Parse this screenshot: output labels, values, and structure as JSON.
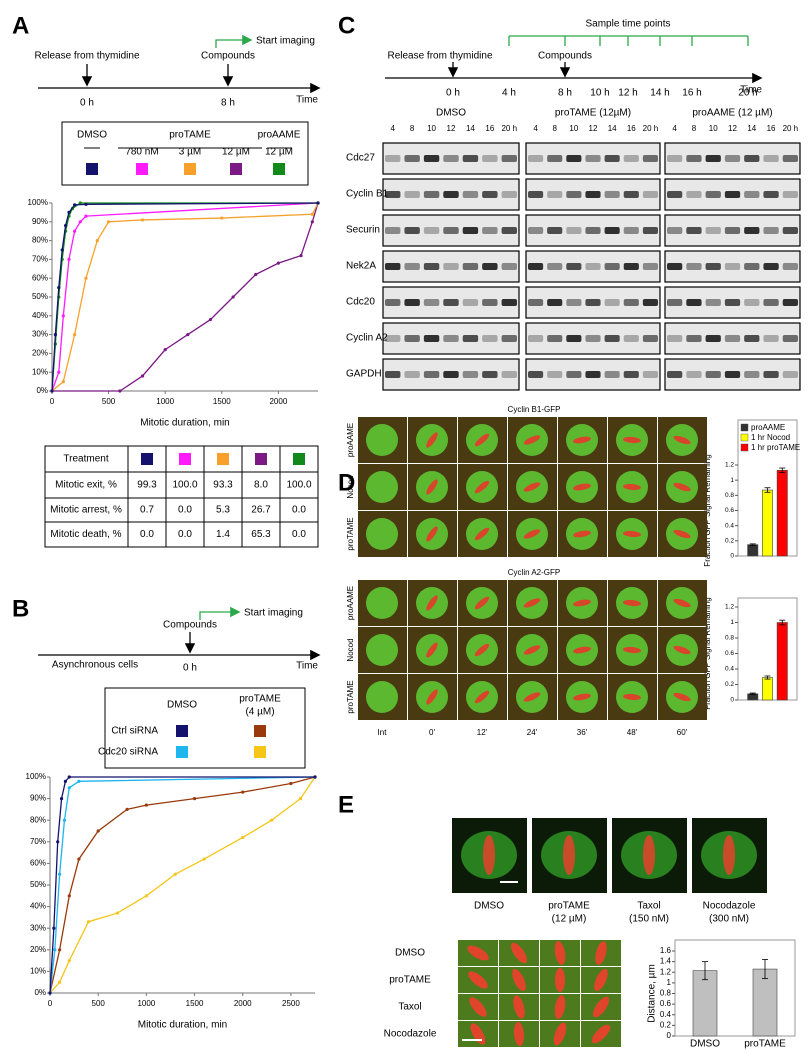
{
  "panel_labels": [
    "A",
    "B",
    "C",
    "D",
    "E"
  ],
  "panel_a": {
    "timeline": {
      "release": "Release from thymidine",
      "t0": "0 h",
      "compounds": "Compounds",
      "t8": "8 h",
      "start": "Start imaging",
      "axis": "Time"
    },
    "legend": {
      "dmso": "DMSO",
      "protame": "proTAME",
      "proaame": "proAAME",
      "items": [
        {
          "color": "#13136e"
        },
        {
          "label": "780 nM",
          "color": "#ff1aff"
        },
        {
          "label": "3 µM",
          "color": "#f7a12a"
        },
        {
          "label": "12 µM",
          "color": "#7b1a85"
        },
        {
          "label": "12 µM",
          "color": "#128a1a"
        }
      ]
    },
    "table": {
      "header": "Treatment",
      "rows": [
        {
          "label": "Mitotic exit, %",
          "cells": [
            "99.3",
            "100.0",
            "93.3",
            "8.0",
            "100.0"
          ]
        },
        {
          "label": "Mitotic arrest, %",
          "cells": [
            "0.7",
            "0.0",
            "5.3",
            "26.7",
            "0.0"
          ]
        },
        {
          "label": "Mitotic death, %",
          "cells": [
            "0.0",
            "0.0",
            "1.4",
            "65.3",
            "0.0"
          ]
        }
      ]
    }
  },
  "panel_b": {
    "timeline": {
      "compounds": "Compounds",
      "t0": "0 h",
      "start": "Start imaging",
      "cells": "Asynchronous cells",
      "axis": "Time"
    },
    "legend": {
      "col1": "DMSO",
      "col2": [
        "proTAME",
        "(4 µM)"
      ],
      "rows": [
        {
          "label": "Ctrl siRNA",
          "colors": [
            "#13136e",
            "#9a3a0c"
          ]
        },
        {
          "label": "Cdc20 siRNA",
          "colors": [
            "#1fb5ef",
            "#f5c518"
          ]
        }
      ]
    }
  },
  "panel_c": {
    "points": "Sample time points",
    "release": "Release from thymidine",
    "compounds": "Compounds",
    "times": [
      "0 h",
      "4 h",
      "8 h",
      "10 h",
      "12 h",
      "14 h",
      "16 h",
      "20 h"
    ],
    "axis": "Time",
    "groups": [
      "DMSO",
      "proTAME (12µM)",
      "proAAME (12 µM)"
    ],
    "lanes": [
      "4",
      "8",
      "10",
      "12",
      "14",
      "16",
      "20 h"
    ],
    "rows": [
      "Cdc27",
      "Cyclin B1",
      "Securin",
      "Nek2A",
      "Cdc20",
      "Cyclin A2",
      "GAPDH"
    ]
  },
  "panel_d": {
    "titles": [
      "Cyclin B1-GFP",
      "Cyclin A2-GFP"
    ],
    "rows": [
      "proAAME",
      "Nocod",
      "proTAME"
    ],
    "columns": [
      "Int",
      "0'",
      "12'",
      "24'",
      "36'",
      "48'",
      "60'"
    ]
  },
  "panel_e": {
    "images": [
      [
        "DMSO"
      ],
      [
        "proTAME",
        "(12 µM)"
      ],
      [
        "Taxol",
        "(150 nM)"
      ],
      [
        "Nocodazole",
        "(300 nM)"
      ]
    ],
    "rows": [
      "DMSO",
      "proTAME",
      "Taxol",
      "Nocodazole"
    ]
  },
  "chart_data": [
    {
      "type": "line",
      "xlabel": "Mitotic duration, min",
      "xlim": [
        0,
        2350
      ],
      "xticks": [
        0,
        500,
        1000,
        1500,
        2000
      ],
      "ylim": [
        0,
        100
      ],
      "yticks": [
        {
          "value": 0,
          "label": "0%"
        },
        {
          "value": 10,
          "label": "10%"
        },
        {
          "value": 20,
          "label": "20%"
        },
        {
          "value": 30,
          "label": "30%"
        },
        {
          "value": 40,
          "label": "40%"
        },
        {
          "value": 50,
          "label": "50%"
        },
        {
          "value": 60,
          "label": "60%"
        },
        {
          "value": 70,
          "label": "70%"
        },
        {
          "value": 80,
          "label": "80%"
        },
        {
          "value": 90,
          "label": "90%"
        },
        {
          "value": 100,
          "label": "100%"
        }
      ],
      "series": [
        {
          "color": "#7b1a85",
          "x": [
            0,
            600,
            800,
            1000,
            1200,
            1400,
            1600,
            1800,
            2000,
            2200,
            2300,
            2350
          ],
          "values": [
            0,
            0,
            8,
            22,
            30,
            38,
            50,
            62,
            68,
            72,
            90,
            100
          ]
        },
        {
          "color": "#f7a12a",
          "x": [
            0,
            100,
            200,
            300,
            400,
            500,
            800,
            1500,
            2300,
            2350
          ],
          "values": [
            0,
            5,
            30,
            60,
            80,
            90,
            91,
            92,
            94,
            100
          ]
        },
        {
          "color": "#ff1aff",
          "x": [
            0,
            60,
            100,
            150,
            200,
            250,
            300,
            2350
          ],
          "values": [
            0,
            10,
            40,
            70,
            85,
            90,
            93,
            100
          ]
        },
        {
          "color": "#128a1a",
          "x": [
            0,
            30,
            60,
            90,
            120,
            150,
            180,
            250,
            2350
          ],
          "values": [
            0,
            25,
            50,
            70,
            85,
            93,
            97,
            100,
            100
          ]
        },
        {
          "color": "#13136e",
          "x": [
            0,
            30,
            60,
            90,
            120,
            150,
            200,
            300,
            2350
          ],
          "values": [
            0,
            30,
            55,
            75,
            88,
            95,
            99,
            99.3,
            100
          ]
        }
      ]
    },
    {
      "type": "line",
      "xlabel": "Mitotic duration, min",
      "xlim": [
        0,
        2750
      ],
      "xticks": [
        0,
        500,
        1000,
        1500,
        2000,
        2500
      ],
      "ylim": [
        0,
        100
      ],
      "yticks": [
        {
          "value": 0,
          "label": "0%"
        },
        {
          "value": 10,
          "label": "10%"
        },
        {
          "value": 20,
          "label": "20%"
        },
        {
          "value": 30,
          "label": "30%"
        },
        {
          "value": 40,
          "label": "40%"
        },
        {
          "value": 50,
          "label": "50%"
        },
        {
          "value": 60,
          "label": "60%"
        },
        {
          "value": 70,
          "label": "70%"
        },
        {
          "value": 80,
          "label": "80%"
        },
        {
          "value": 90,
          "label": "90%"
        },
        {
          "value": 100,
          "label": "100%"
        }
      ],
      "series": [
        {
          "color": "#f5c518",
          "x": [
            0,
            100,
            200,
            400,
            700,
            1000,
            1300,
            1600,
            2000,
            2300,
            2600,
            2750
          ],
          "values": [
            0,
            5,
            15,
            33,
            37,
            45,
            55,
            62,
            72,
            80,
            90,
            100
          ]
        },
        {
          "color": "#9a3a0c",
          "x": [
            0,
            100,
            200,
            300,
            500,
            800,
            1000,
            1500,
            2000,
            2500,
            2750
          ],
          "values": [
            0,
            20,
            45,
            62,
            75,
            85,
            87,
            90,
            93,
            97,
            100
          ]
        },
        {
          "color": "#1fb5ef",
          "x": [
            0,
            50,
            100,
            150,
            200,
            300,
            2750
          ],
          "values": [
            0,
            20,
            55,
            80,
            95,
            98,
            100
          ]
        },
        {
          "color": "#13136e",
          "x": [
            0,
            40,
            80,
            120,
            160,
            200,
            2750
          ],
          "values": [
            0,
            30,
            70,
            90,
            98,
            100,
            100
          ]
        }
      ]
    },
    {
      "type": "bar",
      "ylabel": "Fraction GFP Signal Remaining",
      "ylim": [
        0,
        1.2
      ],
      "yticks": [
        0,
        0.2,
        0.4,
        0.6,
        0.8,
        1,
        1.2
      ],
      "legend": "top",
      "series": [
        {
          "name": "proAAME",
          "color": "#333333",
          "values": [
            0.15
          ],
          "errors": [
            0.01
          ]
        },
        {
          "name": "1 hr Nocod",
          "color": "#ffff00",
          "values": [
            0.87
          ],
          "errors": [
            0.03
          ]
        },
        {
          "name": "1 hr proTAME",
          "color": "#ff0000",
          "values": [
            1.13
          ],
          "errors": [
            0.03
          ]
        }
      ]
    },
    {
      "type": "bar",
      "ylabel": "Fraction GFP Signal Remaining",
      "ylim": [
        0,
        1.2
      ],
      "yticks": [
        0,
        0.2,
        0.4,
        0.6,
        0.8,
        1,
        1.2
      ],
      "series": [
        {
          "color": "#333333",
          "values": [
            0.08
          ],
          "errors": [
            0.01
          ]
        },
        {
          "color": "#ffff00",
          "values": [
            0.29
          ],
          "errors": [
            0.02
          ]
        },
        {
          "color": "#ff0000",
          "values": [
            1.0
          ],
          "errors": [
            0.03
          ]
        }
      ]
    },
    {
      "type": "bar",
      "ylabel": "Distance, µm",
      "categories": [
        "DMSO",
        "proTAME"
      ],
      "values": [
        1.23,
        1.26
      ],
      "errors": [
        0.17,
        0.18
      ],
      "color": "#bfbfbf",
      "ylim": [
        0,
        1.6
      ],
      "yticks": [
        0,
        0.2,
        0.4,
        0.6,
        0.8,
        1,
        1.2,
        1.4,
        1.6
      ]
    }
  ]
}
